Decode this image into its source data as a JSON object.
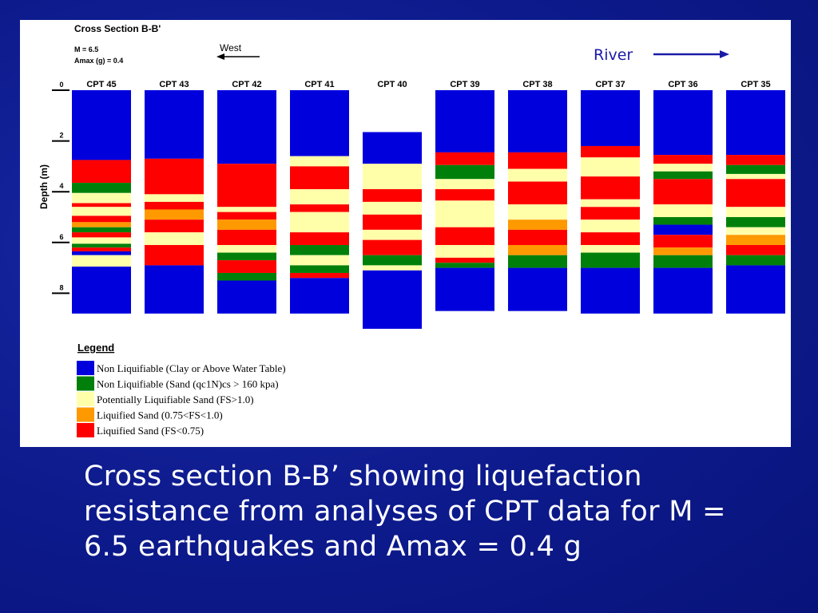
{
  "chart_data": {
    "type": "stratigraphic-cross-section",
    "title": "Cross Section B-B'",
    "params": [
      "M = 6.5",
      "Amax (g) = 0.4"
    ],
    "direction_label": "West",
    "river_label": "River",
    "ylabel": "Depth (m)",
    "ylim": [
      0,
      9.3
    ],
    "yticks": [
      0,
      2,
      4,
      6,
      8
    ],
    "colors": {
      "nonliq_clay": "#0000dd",
      "nonliq_sand": "#00800a",
      "pot_liq": "#ffffaa",
      "liq_orange": "#ff9900",
      "liq_red": "#ff0000"
    },
    "columns": [
      {
        "name": "CPT 45",
        "top": 0.0,
        "bottom": 8.8,
        "layers": [
          [
            0.0,
            2.75,
            "nonliq_clay"
          ],
          [
            2.75,
            3.65,
            "liq_red"
          ],
          [
            3.65,
            4.05,
            "nonliq_sand"
          ],
          [
            4.05,
            4.45,
            "pot_liq"
          ],
          [
            4.45,
            4.6,
            "liq_red"
          ],
          [
            4.6,
            4.95,
            "pot_liq"
          ],
          [
            4.95,
            5.2,
            "liq_red"
          ],
          [
            5.2,
            5.4,
            "liq_orange"
          ],
          [
            5.4,
            5.6,
            "nonliq_sand"
          ],
          [
            5.6,
            5.8,
            "liq_red"
          ],
          [
            5.8,
            6.05,
            "pot_liq"
          ],
          [
            6.05,
            6.2,
            "nonliq_sand"
          ],
          [
            6.2,
            6.35,
            "liq_red"
          ],
          [
            6.35,
            6.5,
            "nonliq_clay"
          ],
          [
            6.5,
            6.95,
            "pot_liq"
          ],
          [
            6.95,
            8.8,
            "nonliq_clay"
          ]
        ]
      },
      {
        "name": "CPT 43",
        "top": 0.0,
        "bottom": 8.8,
        "layers": [
          [
            0.0,
            2.7,
            "nonliq_clay"
          ],
          [
            2.7,
            4.1,
            "liq_red"
          ],
          [
            4.1,
            4.4,
            "pot_liq"
          ],
          [
            4.4,
            4.7,
            "liq_red"
          ],
          [
            4.7,
            5.1,
            "liq_orange"
          ],
          [
            5.1,
            5.6,
            "liq_red"
          ],
          [
            5.6,
            6.1,
            "pot_liq"
          ],
          [
            6.1,
            6.9,
            "liq_red"
          ],
          [
            6.9,
            8.8,
            "nonliq_clay"
          ]
        ]
      },
      {
        "name": "CPT 42",
        "top": 0.0,
        "bottom": 8.8,
        "layers": [
          [
            0.0,
            2.9,
            "nonliq_clay"
          ],
          [
            2.9,
            4.6,
            "liq_red"
          ],
          [
            4.6,
            4.8,
            "pot_liq"
          ],
          [
            4.8,
            5.1,
            "liq_red"
          ],
          [
            5.1,
            5.5,
            "liq_orange"
          ],
          [
            5.5,
            6.1,
            "liq_red"
          ],
          [
            6.1,
            6.4,
            "pot_liq"
          ],
          [
            6.4,
            6.7,
            "nonliq_sand"
          ],
          [
            6.7,
            7.2,
            "liq_red"
          ],
          [
            7.2,
            7.5,
            "nonliq_sand"
          ],
          [
            7.5,
            8.8,
            "nonliq_clay"
          ]
        ]
      },
      {
        "name": "CPT 41",
        "top": 0.0,
        "bottom": 8.8,
        "layers": [
          [
            0.0,
            2.6,
            "nonliq_clay"
          ],
          [
            2.6,
            3.0,
            "pot_liq"
          ],
          [
            3.0,
            3.9,
            "liq_red"
          ],
          [
            3.9,
            4.5,
            "pot_liq"
          ],
          [
            4.5,
            4.8,
            "liq_red"
          ],
          [
            4.8,
            5.6,
            "pot_liq"
          ],
          [
            5.6,
            6.1,
            "liq_red"
          ],
          [
            6.1,
            6.5,
            "nonliq_sand"
          ],
          [
            6.5,
            6.9,
            "pot_liq"
          ],
          [
            6.9,
            7.2,
            "nonliq_sand"
          ],
          [
            7.2,
            7.4,
            "liq_red"
          ],
          [
            7.4,
            8.8,
            "nonliq_clay"
          ]
        ]
      },
      {
        "name": "CPT 40",
        "top": 1.65,
        "bottom": 9.4,
        "layers": [
          [
            1.65,
            2.9,
            "nonliq_clay"
          ],
          [
            2.9,
            3.9,
            "pot_liq"
          ],
          [
            3.9,
            4.4,
            "liq_red"
          ],
          [
            4.4,
            4.9,
            "pot_liq"
          ],
          [
            4.9,
            5.5,
            "liq_red"
          ],
          [
            5.5,
            5.9,
            "pot_liq"
          ],
          [
            5.9,
            6.5,
            "liq_red"
          ],
          [
            6.5,
            6.9,
            "nonliq_sand"
          ],
          [
            6.9,
            7.1,
            "pot_liq"
          ],
          [
            7.1,
            9.4,
            "nonliq_clay"
          ]
        ]
      },
      {
        "name": "CPT 39",
        "top": 0.0,
        "bottom": 8.7,
        "layers": [
          [
            0.0,
            2.45,
            "nonliq_clay"
          ],
          [
            2.45,
            2.95,
            "liq_red"
          ],
          [
            2.95,
            3.5,
            "nonliq_sand"
          ],
          [
            3.5,
            3.9,
            "pot_liq"
          ],
          [
            3.9,
            4.35,
            "liq_red"
          ],
          [
            4.35,
            5.4,
            "pot_liq"
          ],
          [
            5.4,
            6.1,
            "liq_red"
          ],
          [
            6.1,
            6.6,
            "pot_liq"
          ],
          [
            6.6,
            6.8,
            "liq_red"
          ],
          [
            6.8,
            7.0,
            "nonliq_sand"
          ],
          [
            7.0,
            8.7,
            "nonliq_clay"
          ]
        ]
      },
      {
        "name": "CPT 38",
        "top": 0.0,
        "bottom": 8.7,
        "layers": [
          [
            0.0,
            2.45,
            "nonliq_clay"
          ],
          [
            2.45,
            3.1,
            "liq_red"
          ],
          [
            3.1,
            3.6,
            "pot_liq"
          ],
          [
            3.6,
            4.5,
            "liq_red"
          ],
          [
            4.5,
            5.1,
            "pot_liq"
          ],
          [
            5.1,
            5.5,
            "liq_orange"
          ],
          [
            5.5,
            6.1,
            "liq_red"
          ],
          [
            6.1,
            6.5,
            "liq_orange"
          ],
          [
            6.5,
            7.0,
            "nonliq_sand"
          ],
          [
            7.0,
            8.7,
            "nonliq_clay"
          ]
        ]
      },
      {
        "name": "CPT 37",
        "top": 0.0,
        "bottom": 8.8,
        "layers": [
          [
            0.0,
            2.2,
            "nonliq_clay"
          ],
          [
            2.2,
            2.65,
            "liq_red"
          ],
          [
            2.65,
            3.4,
            "pot_liq"
          ],
          [
            3.4,
            4.3,
            "liq_red"
          ],
          [
            4.3,
            4.6,
            "pot_liq"
          ],
          [
            4.6,
            5.1,
            "liq_red"
          ],
          [
            5.1,
            5.6,
            "pot_liq"
          ],
          [
            5.6,
            6.1,
            "liq_red"
          ],
          [
            6.1,
            6.4,
            "pot_liq"
          ],
          [
            6.4,
            7.0,
            "nonliq_sand"
          ],
          [
            7.0,
            8.8,
            "nonliq_clay"
          ]
        ]
      },
      {
        "name": "CPT 36",
        "top": 0.0,
        "bottom": 8.8,
        "layers": [
          [
            0.0,
            2.55,
            "nonliq_clay"
          ],
          [
            2.55,
            2.9,
            "liq_red"
          ],
          [
            2.9,
            3.2,
            "pot_liq"
          ],
          [
            3.2,
            3.5,
            "nonliq_sand"
          ],
          [
            3.5,
            4.5,
            "liq_red"
          ],
          [
            4.5,
            5.0,
            "pot_liq"
          ],
          [
            5.0,
            5.3,
            "nonliq_sand"
          ],
          [
            5.3,
            5.7,
            "nonliq_clay"
          ],
          [
            5.7,
            6.2,
            "liq_red"
          ],
          [
            6.2,
            6.5,
            "liq_orange"
          ],
          [
            6.5,
            7.0,
            "nonliq_sand"
          ],
          [
            7.0,
            8.8,
            "nonliq_clay"
          ]
        ]
      },
      {
        "name": "CPT 35",
        "top": 0.0,
        "bottom": 8.8,
        "layers": [
          [
            0.0,
            2.55,
            "nonliq_clay"
          ],
          [
            2.55,
            2.95,
            "liq_red"
          ],
          [
            2.95,
            3.3,
            "nonliq_sand"
          ],
          [
            3.3,
            3.5,
            "pot_liq"
          ],
          [
            3.5,
            4.6,
            "liq_red"
          ],
          [
            4.6,
            5.0,
            "pot_liq"
          ],
          [
            5.0,
            5.4,
            "nonliq_sand"
          ],
          [
            5.4,
            5.7,
            "pot_liq"
          ],
          [
            5.7,
            6.1,
            "liq_orange"
          ],
          [
            6.1,
            6.5,
            "liq_red"
          ],
          [
            6.5,
            6.9,
            "nonliq_sand"
          ],
          [
            6.9,
            8.8,
            "nonliq_clay"
          ]
        ]
      }
    ],
    "legend": {
      "title": "Legend",
      "items": [
        {
          "key": "nonliq_clay",
          "label": "Non Liquifiable (Clay or Above Water Table)"
        },
        {
          "key": "nonliq_sand",
          "label": "Non Liquifiable (Sand (qc1N)cs > 160 kpa)"
        },
        {
          "key": "pot_liq",
          "label": "Potentially Liquifiable Sand (FS>1.0)"
        },
        {
          "key": "liq_orange",
          "label": "Liquified Sand    (0.75<FS<1.0)"
        },
        {
          "key": "liq_red",
          "label": "Liquified Sand    (FS<0.75)"
        }
      ]
    }
  },
  "caption": "Cross section B-B’ showing liquefaction resistance from analyses of CPT data for M = 6.5 earthquakes and Amax = 0.4 g"
}
